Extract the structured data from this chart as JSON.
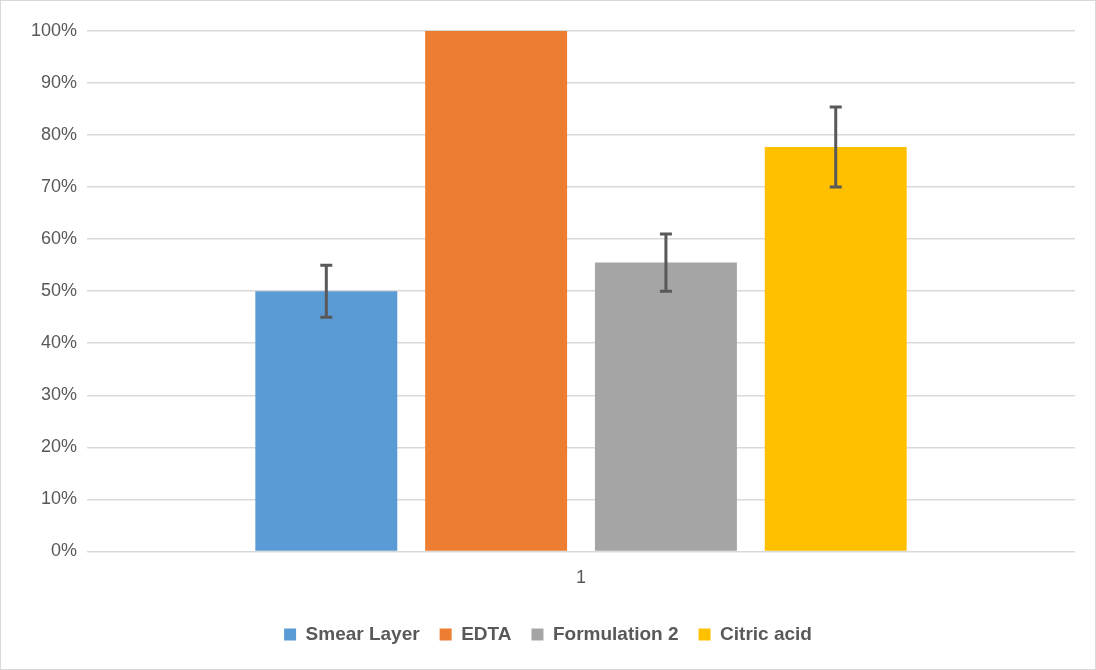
{
  "chart_data": {
    "type": "bar",
    "categories": [
      "1"
    ],
    "series": [
      {
        "name": "Smear Layer",
        "color": "#5b9bd5",
        "values": [
          50
        ],
        "errors": [
          5
        ]
      },
      {
        "name": "EDTA",
        "color": "#ed7d31",
        "values": [
          100
        ],
        "errors": [
          null
        ]
      },
      {
        "name": "Formulation 2",
        "color": "#a5a5a5",
        "values": [
          55.5
        ],
        "errors": [
          5.5
        ]
      },
      {
        "name": "Citric acid",
        "color": "#ffc000",
        "values": [
          77.7
        ],
        "errors": [
          7.7
        ]
      }
    ],
    "ylim": [
      0,
      100
    ],
    "yticks": [
      {
        "value": 0,
        "label": "0%"
      },
      {
        "value": 10,
        "label": "10%"
      },
      {
        "value": 20,
        "label": "20%"
      },
      {
        "value": 30,
        "label": "30%"
      },
      {
        "value": 40,
        "label": "40%"
      },
      {
        "value": 50,
        "label": "50%"
      },
      {
        "value": 60,
        "label": "60%"
      },
      {
        "value": 70,
        "label": "70%"
      },
      {
        "value": 80,
        "label": "80%"
      },
      {
        "value": 90,
        "label": "90%"
      },
      {
        "value": 100,
        "label": "100%"
      }
    ],
    "grid": "y",
    "legend": "bottom"
  }
}
